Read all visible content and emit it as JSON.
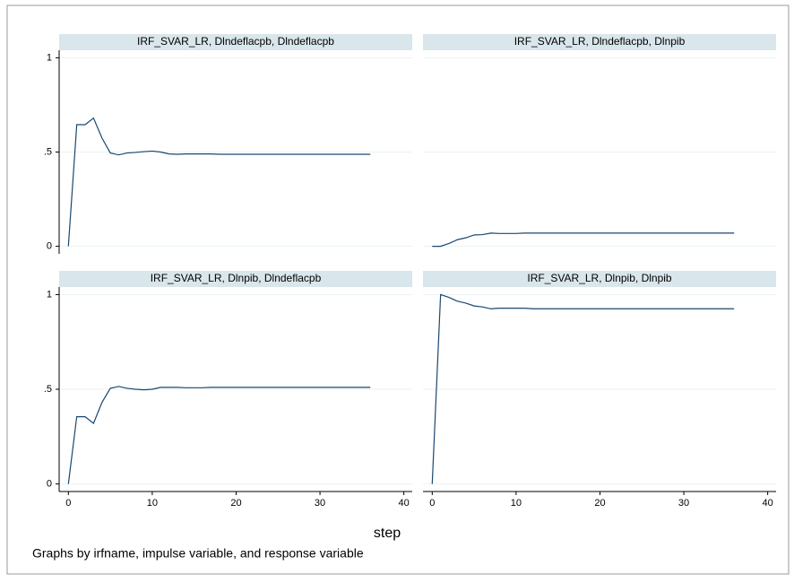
{
  "chart_data": [
    {
      "type": "line",
      "title": "IRF_SVAR_LR, Dlndeflacpb, Dlndeflacpb",
      "color": "#1a476f",
      "x": [
        0,
        1,
        2,
        3,
        4,
        5,
        6,
        7,
        8,
        9,
        10,
        11,
        12,
        13,
        14,
        15,
        16,
        17,
        18,
        19,
        20,
        21,
        22,
        23,
        24,
        25,
        26,
        27,
        28,
        29,
        30,
        31,
        32,
        33,
        34,
        35,
        36
      ],
      "values": [
        0,
        0.645,
        0.645,
        0.68,
        0.575,
        0.495,
        0.485,
        0.495,
        0.498,
        0.502,
        0.505,
        0.5,
        0.49,
        0.488,
        0.49,
        0.49,
        0.49,
        0.49,
        0.488,
        0.488,
        0.488,
        0.488,
        0.488,
        0.488,
        0.488,
        0.488,
        0.488,
        0.488,
        0.488,
        0.488,
        0.488,
        0.488,
        0.488,
        0.488,
        0.488,
        0.488,
        0.488
      ],
      "xlim": [
        -1.1,
        41
      ],
      "ylim": [
        -0.04,
        1.04
      ],
      "yticks": [
        0,
        {
          "value": 0.5,
          "label": ".5"
        },
        1
      ],
      "grid": true
    },
    {
      "type": "line",
      "title": "IRF_SVAR_LR, Dlndeflacpb, Dlnpib",
      "color": "#1a476f",
      "x": [
        0,
        1,
        2,
        3,
        4,
        5,
        6,
        7,
        8,
        9,
        10,
        11,
        12,
        13,
        14,
        15,
        16,
        17,
        18,
        19,
        20,
        21,
        22,
        23,
        24,
        25,
        26,
        27,
        28,
        29,
        30,
        31,
        32,
        33,
        34,
        35,
        36
      ],
      "values": [
        0,
        0,
        0.015,
        0.035,
        0.045,
        0.06,
        0.062,
        0.07,
        0.068,
        0.068,
        0.068,
        0.07,
        0.07,
        0.07,
        0.07,
        0.07,
        0.07,
        0.07,
        0.07,
        0.07,
        0.07,
        0.07,
        0.07,
        0.07,
        0.07,
        0.07,
        0.07,
        0.07,
        0.07,
        0.07,
        0.07,
        0.07,
        0.07,
        0.07,
        0.07,
        0.07,
        0.07
      ],
      "xlim": [
        -1.1,
        41
      ],
      "ylim": [
        -0.04,
        1.04
      ],
      "yticks": [
        0,
        0.5,
        1
      ],
      "grid": true
    },
    {
      "type": "line",
      "title": "IRF_SVAR_LR, Dlnpib, Dlndeflacpb",
      "color": "#1a476f",
      "x": [
        0,
        1,
        2,
        3,
        4,
        5,
        6,
        7,
        8,
        9,
        10,
        11,
        12,
        13,
        14,
        15,
        16,
        17,
        18,
        19,
        20,
        21,
        22,
        23,
        24,
        25,
        26,
        27,
        28,
        29,
        30,
        31,
        32,
        33,
        34,
        35,
        36
      ],
      "values": [
        0,
        0.355,
        0.355,
        0.32,
        0.43,
        0.505,
        0.515,
        0.505,
        0.5,
        0.497,
        0.5,
        0.51,
        0.51,
        0.51,
        0.508,
        0.508,
        0.508,
        0.51,
        0.51,
        0.51,
        0.51,
        0.51,
        0.51,
        0.51,
        0.51,
        0.51,
        0.51,
        0.51,
        0.51,
        0.51,
        0.51,
        0.51,
        0.51,
        0.51,
        0.51,
        0.51,
        0.51
      ],
      "xlim": [
        -1.1,
        41
      ],
      "ylim": [
        -0.04,
        1.04
      ],
      "xticks": [
        0,
        10,
        20,
        30,
        40
      ],
      "yticks": [
        0,
        {
          "value": 0.5,
          "label": ".5"
        },
        1
      ],
      "grid": true
    },
    {
      "type": "line",
      "title": "IRF_SVAR_LR, Dlnpib, Dlnpib",
      "color": "#1a476f",
      "x": [
        0,
        1,
        2,
        3,
        4,
        5,
        6,
        7,
        8,
        9,
        10,
        11,
        12,
        13,
        14,
        15,
        16,
        17,
        18,
        19,
        20,
        21,
        22,
        23,
        24,
        25,
        26,
        27,
        28,
        29,
        30,
        31,
        32,
        33,
        34,
        35,
        36
      ],
      "values": [
        0,
        1,
        0.985,
        0.965,
        0.955,
        0.94,
        0.935,
        0.925,
        0.928,
        0.928,
        0.928,
        0.928,
        0.925,
        0.925,
        0.925,
        0.925,
        0.925,
        0.925,
        0.925,
        0.925,
        0.925,
        0.925,
        0.925,
        0.925,
        0.925,
        0.925,
        0.925,
        0.925,
        0.925,
        0.925,
        0.925,
        0.925,
        0.925,
        0.925,
        0.925,
        0.925,
        0.925
      ],
      "xlim": [
        -1.1,
        41
      ],
      "ylim": [
        -0.04,
        1.04
      ],
      "xticks": [
        0,
        10,
        20,
        30,
        40
      ],
      "yticks": [
        0,
        0.5,
        1
      ],
      "grid": true
    }
  ],
  "xlabel": "step",
  "note": "Graphs by irfname, impulse variable, and response variable"
}
